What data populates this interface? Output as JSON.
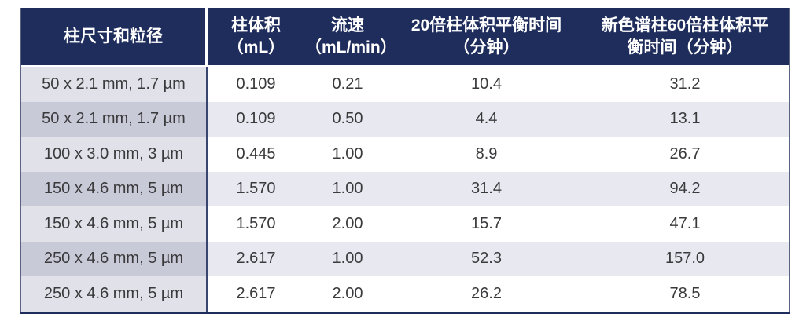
{
  "chart_data": {
    "type": "table",
    "columns": [
      "柱尺寸和粒径",
      "柱体积\n（mL）",
      "流速\n（mL/min）",
      "20倍柱体积平衡时间\n（分钟）",
      "新色谱柱60倍柱体积平\n衡时间（分钟）"
    ],
    "rows": [
      [
        "50 x 2.1 mm, 1.7 µm",
        "0.109",
        "0.21",
        "10.4",
        "31.2"
      ],
      [
        "50 x 2.1 mm, 1.7 µm",
        "0.109",
        "0.50",
        "4.4",
        "13.1"
      ],
      [
        "100 x 3.0 mm, 3 µm",
        "0.445",
        "1.00",
        "8.9",
        "26.7"
      ],
      [
        "150 x 4.6 mm, 5 µm",
        "1.570",
        "1.00",
        "31.4",
        "94.2"
      ],
      [
        "150 x 4.6 mm, 5 µm",
        "1.570",
        "2.00",
        "15.7",
        "47.1"
      ],
      [
        "250 x 4.6 mm, 5 µm",
        "2.617",
        "1.00",
        "52.3",
        "157.0"
      ],
      [
        "250 x 4.6 mm, 5 µm",
        "2.617",
        "2.00",
        "26.2",
        "78.5"
      ]
    ]
  },
  "colors": {
    "header_bg": "#1f2d5c",
    "header_text": "#ffffff",
    "body_text": "#3a3a3c",
    "border": "#5a6380",
    "divider": "#39466f",
    "cell_row_odd": "#ffffff",
    "cell_row_even": "#e8e8f1",
    "col1_row_odd": "#e1e1ea",
    "col1_row_even": "#c9cad8"
  }
}
